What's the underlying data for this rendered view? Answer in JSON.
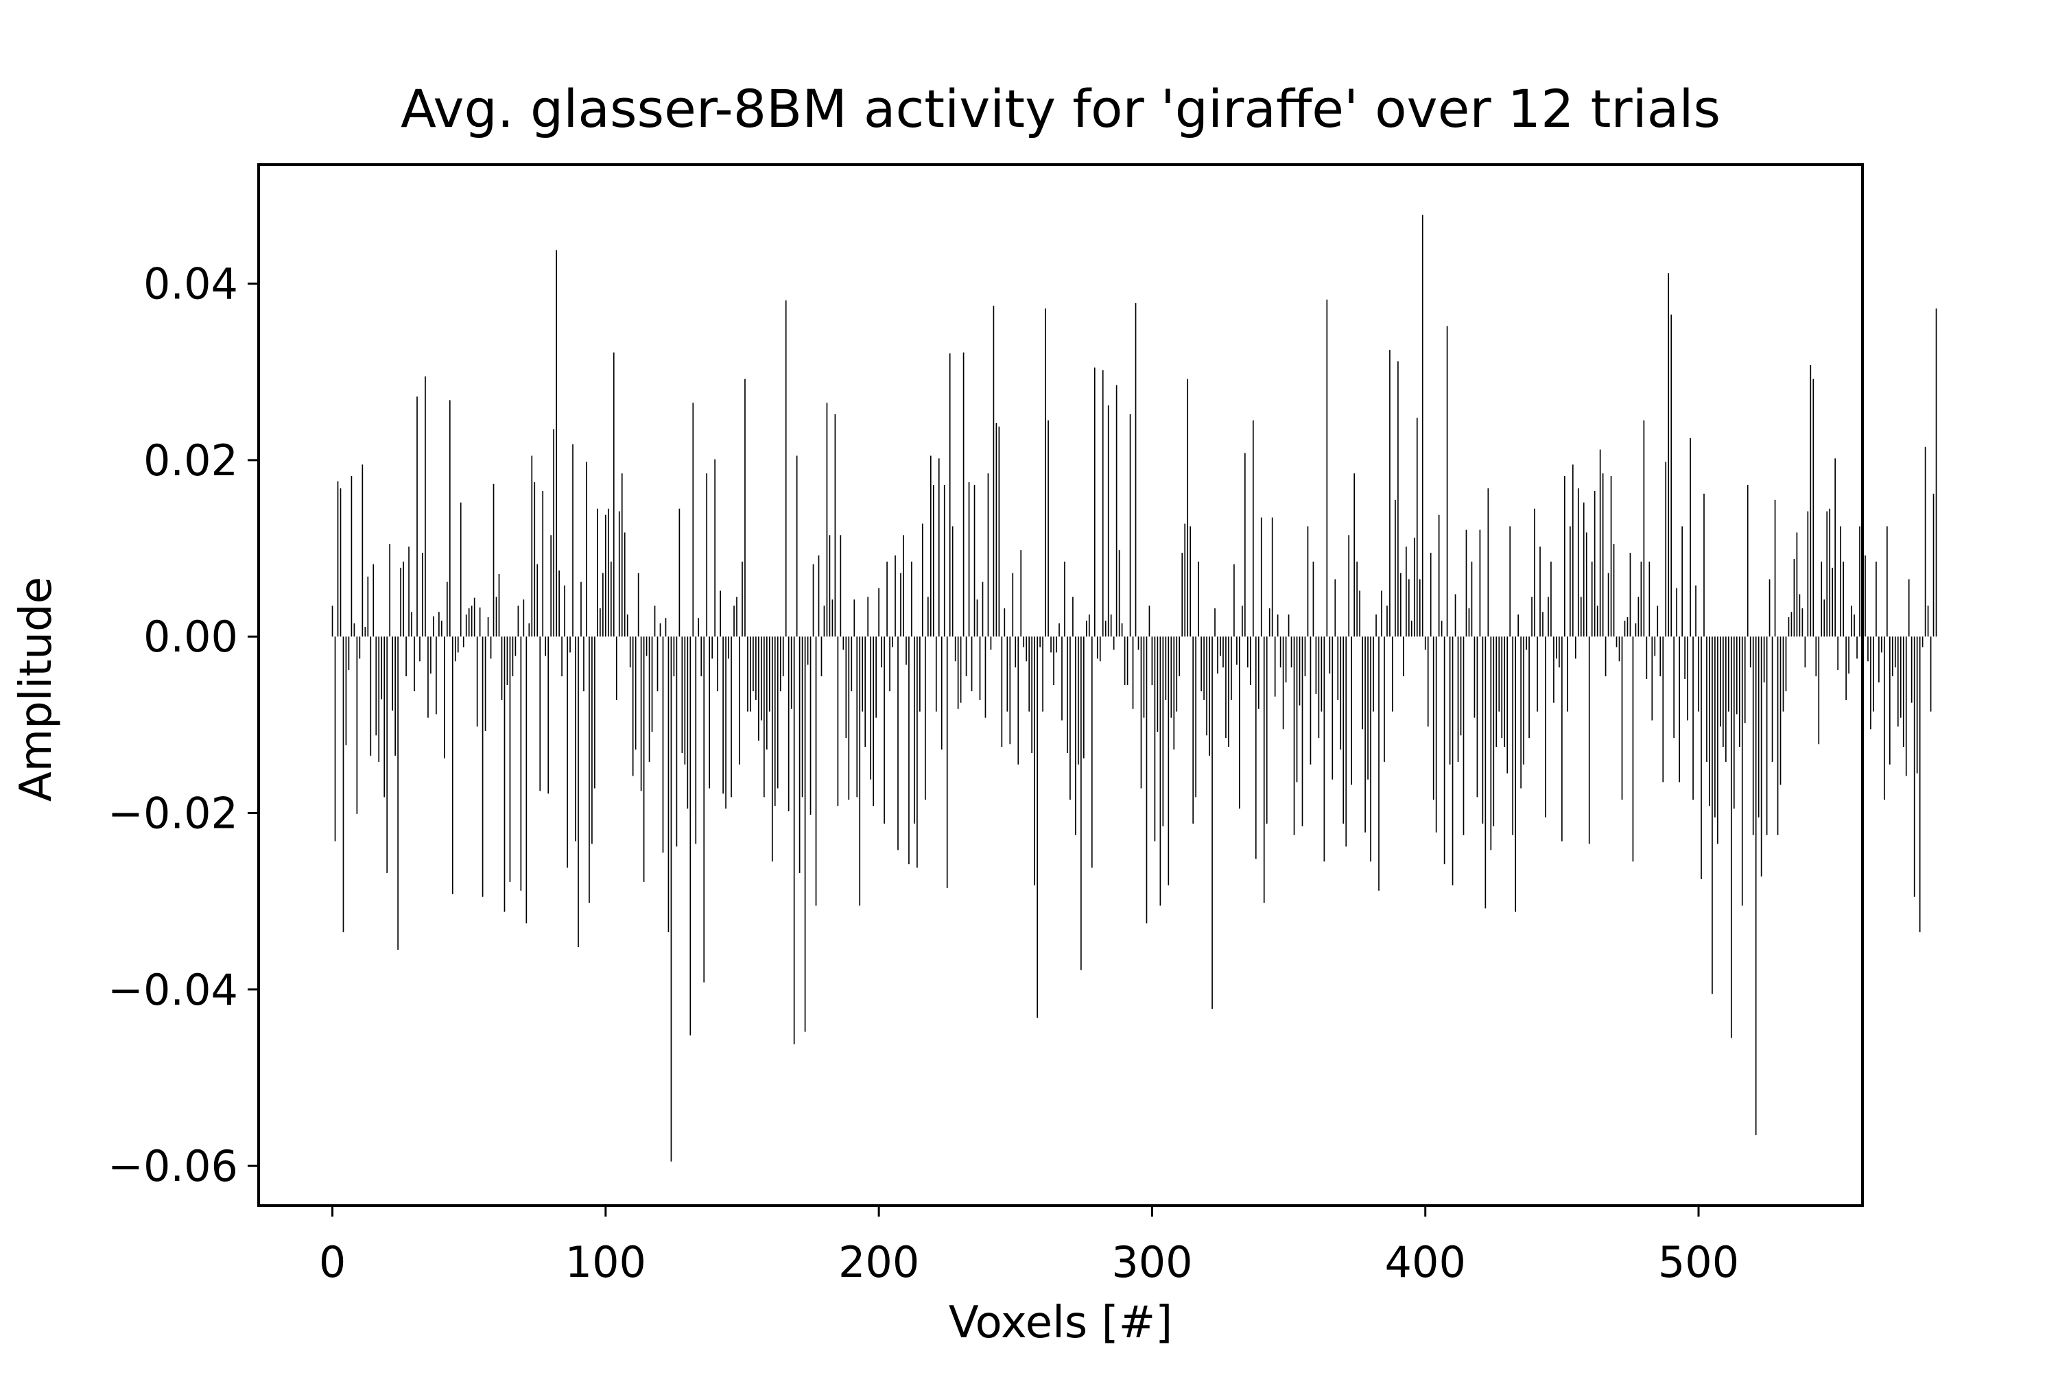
{
  "chart_data": {
    "type": "bar",
    "title": "Avg. glasser-8BM activity for 'giraffe' over 12 trials",
    "xlabel": "Voxels [#]",
    "ylabel": "Amplitude",
    "xlim": [
      -27,
      560
    ],
    "ylim": [
      -0.0645,
      0.0535
    ],
    "xticks": [
      0,
      100,
      200,
      300,
      400,
      500
    ],
    "xtick_labels": [
      "0",
      "100",
      "200",
      "300",
      "400",
      "500"
    ],
    "yticks": [
      -0.06,
      -0.04,
      -0.02,
      0.0,
      0.02,
      0.04
    ],
    "ytick_labels": [
      "−0.06",
      "−0.04",
      "−0.02",
      "0.00",
      "0.02",
      "0.04"
    ],
    "grid": false,
    "bar_color": "#000000",
    "x_start": 0,
    "values": [
      0.0035,
      -0.0232,
      0.0176,
      0.0168,
      -0.0335,
      -0.0123,
      -0.0038,
      0.0182,
      0.0015,
      -0.0201,
      -0.0025,
      0.0195,
      0.0011,
      0.0068,
      -0.0135,
      0.0082,
      -0.0112,
      -0.0142,
      -0.0071,
      -0.0182,
      -0.0268,
      0.0105,
      -0.0084,
      -0.0135,
      -0.0355,
      0.0078,
      0.0085,
      -0.0045,
      0.0102,
      0.0028,
      -0.0062,
      0.0272,
      -0.0028,
      0.0095,
      0.0295,
      -0.0092,
      -0.0042,
      0.0023,
      -0.0088,
      0.0028,
      0.0018,
      -0.0138,
      0.0062,
      0.0268,
      -0.0292,
      -0.0028,
      -0.0018,
      0.0152,
      -0.0012,
      0.0025,
      0.0032,
      0.0035,
      0.0044,
      -0.0102,
      0.0033,
      -0.0295,
      -0.0107,
      0.0022,
      -0.0025,
      0.0173,
      0.0045,
      0.0071,
      -0.0072,
      -0.0312,
      -0.0055,
      -0.0278,
      -0.0045,
      -0.0022,
      0.0035,
      -0.0288,
      0.0042,
      -0.0325,
      0.0015,
      0.0205,
      0.0175,
      0.0082,
      -0.0175,
      0.0165,
      -0.0022,
      -0.0178,
      0.0115,
      0.0235,
      0.0438,
      0.0075,
      -0.0045,
      0.0058,
      -0.0262,
      -0.0018,
      0.0218,
      -0.0232,
      -0.0352,
      0.0062,
      -0.0062,
      0.0198,
      -0.0302,
      -0.0235,
      -0.0172,
      0.0145,
      0.0032,
      0.0072,
      0.0138,
      0.0145,
      0.0085,
      0.0322,
      -0.0072,
      0.0142,
      0.0185,
      0.0118,
      0.0025,
      -0.0035,
      -0.0158,
      -0.0128,
      0.0072,
      -0.0175,
      -0.0278,
      -0.0022,
      -0.0142,
      -0.0108,
      0.0035,
      -0.0062,
      0.0015,
      -0.0245,
      0.0021,
      -0.0335,
      -0.0595,
      -0.0045,
      -0.0238,
      0.0145,
      -0.0132,
      -0.0145,
      -0.0195,
      -0.0452,
      0.0265,
      -0.0235,
      0.0021,
      -0.0045,
      -0.0392,
      0.0185,
      -0.0172,
      -0.0025,
      0.0201,
      -0.0062,
      0.0052,
      -0.0178,
      -0.0195,
      -0.0025,
      -0.0182,
      0.0035,
      0.0045,
      -0.0145,
      0.0085,
      0.0292,
      -0.0085,
      -0.0085,
      -0.0062,
      -0.0072,
      -0.0118,
      -0.0095,
      -0.0182,
      -0.0128,
      -0.0085,
      -0.0255,
      -0.0192,
      -0.0172,
      -0.0062,
      -0.0045,
      0.0381,
      -0.0198,
      -0.0082,
      -0.0462,
      0.0205,
      -0.0268,
      -0.0182,
      -0.0448,
      -0.0032,
      -0.0202,
      0.0082,
      -0.0305,
      0.0092,
      -0.0045,
      0.0035,
      0.0265,
      0.0115,
      0.0042,
      0.0252,
      -0.0192,
      0.0115,
      -0.0015,
      -0.0115,
      -0.0185,
      -0.0062,
      0.0042,
      -0.0182,
      -0.0305,
      -0.0085,
      -0.0125,
      0.0045,
      -0.0162,
      -0.0192,
      -0.0092,
      0.0055,
      -0.0035,
      -0.0212,
      0.0085,
      -0.0062,
      -0.0012,
      0.0092,
      -0.0242,
      0.0072,
      0.0115,
      -0.0032,
      -0.0258,
      0.0085,
      -0.0212,
      -0.0262,
      -0.0085,
      0.0128,
      -0.0185,
      0.0045,
      0.0205,
      0.0172,
      -0.0085,
      0.0202,
      -0.0128,
      0.0172,
      -0.0285,
      0.0321,
      0.0125,
      -0.0028,
      -0.0082,
      -0.0075,
      0.0322,
      -0.0045,
      0.0175,
      -0.0062,
      0.0172,
      0.0042,
      -0.0072,
      0.0062,
      -0.0092,
      0.0185,
      -0.0015,
      0.0375,
      0.0242,
      0.0238,
      -0.0125,
      0.0032,
      -0.0085,
      -0.0122,
      0.0072,
      -0.0035,
      -0.0145,
      0.0098,
      -0.0012,
      -0.0028,
      -0.0085,
      -0.0132,
      -0.0282,
      -0.0432,
      -0.0012,
      -0.0085,
      0.0372,
      0.0245,
      -0.0018,
      -0.0055,
      -0.0018,
      0.0015,
      -0.0095,
      0.0085,
      -0.0132,
      -0.0185,
      0.0045,
      -0.0225,
      -0.0145,
      -0.0378,
      -0.0138,
      0.0018,
      0.0025,
      -0.0262,
      0.0305,
      -0.0025,
      -0.0028,
      0.0302,
      0.0018,
      0.0262,
      0.0025,
      -0.0015,
      0.0285,
      0.0098,
      0.0015,
      -0.0055,
      -0.0055,
      0.0252,
      -0.0082,
      0.0378,
      -0.0015,
      -0.0172,
      -0.0092,
      -0.0325,
      0.0035,
      -0.0055,
      -0.0232,
      -0.0108,
      -0.0305,
      -0.0215,
      -0.0072,
      -0.0282,
      -0.0092,
      -0.0128,
      -0.0085,
      -0.0045,
      0.0095,
      0.0128,
      0.0292,
      0.0125,
      -0.0212,
      -0.0182,
      0.0085,
      -0.0062,
      -0.0072,
      -0.0112,
      -0.0135,
      -0.0422,
      0.0032,
      -0.0042,
      -0.0022,
      -0.0035,
      -0.0115,
      -0.0125,
      -0.0072,
      0.0082,
      -0.0032,
      -0.0195,
      0.0035,
      0.0208,
      -0.0035,
      -0.0055,
      0.0245,
      -0.0252,
      -0.0082,
      0.0135,
      -0.0302,
      -0.0212,
      0.0032,
      0.0135,
      -0.0068,
      0.0025,
      -0.0035,
      -0.0105,
      -0.0052,
      0.0025,
      -0.0035,
      -0.0225,
      -0.0165,
      -0.0078,
      -0.0215,
      -0.0045,
      0.0125,
      -0.0145,
      0.0085,
      -0.0065,
      -0.0115,
      -0.0085,
      -0.0255,
      0.0382,
      -0.0042,
      -0.0162,
      0.0065,
      -0.0072,
      -0.0128,
      -0.0212,
      -0.0238,
      0.0115,
      -0.0168,
      0.0185,
      0.0085,
      0.0052,
      -0.0105,
      -0.0222,
      -0.0162,
      -0.0255,
      -0.0085,
      0.0025,
      -0.0288,
      0.0052,
      -0.0142,
      0.0035,
      0.0325,
      -0.0085,
      0.0155,
      0.0312,
      0.0072,
      -0.0045,
      0.0102,
      0.0065,
      0.0018,
      0.0112,
      0.0248,
      0.0065,
      0.0478,
      -0.0015,
      -0.0102,
      0.0095,
      -0.0185,
      -0.0222,
      0.0138,
      0.0018,
      -0.0258,
      0.0352,
      -0.0145,
      -0.0282,
      0.0048,
      -0.0142,
      -0.0112,
      -0.0225,
      0.0121,
      0.0032,
      0.0085,
      -0.0092,
      -0.0182,
      0.0121,
      -0.0212,
      -0.0308,
      0.0168,
      -0.0242,
      -0.0215,
      -0.0125,
      -0.0085,
      -0.0115,
      -0.0125,
      -0.0155,
      0.0125,
      -0.0225,
      -0.0312,
      0.0025,
      -0.0172,
      -0.0145,
      -0.0015,
      -0.0115,
      0.0045,
      0.0145,
      -0.0085,
      0.0102,
      0.0028,
      -0.0205,
      0.0045,
      0.0085,
      -0.0075,
      -0.0025,
      -0.0035,
      -0.0232,
      0.0182,
      -0.0085,
      0.0125,
      0.0195,
      -0.0025,
      0.0168,
      0.0045,
      0.0152,
      0.0118,
      -0.0235,
      0.0085,
      0.0165,
      0.0035,
      0.0212,
      0.0185,
      -0.0045,
      0.0072,
      0.0182,
      0.0105,
      -0.0012,
      -0.0028,
      -0.0185,
      0.0018,
      0.0022,
      0.0095,
      -0.0255,
      0.0015,
      0.0045,
      0.0085,
      0.0245,
      -0.0048,
      0.0085,
      -0.0095,
      -0.0022,
      0.0035,
      -0.0045,
      -0.0165,
      0.0198,
      0.0412,
      0.0365,
      -0.0115,
      0.0055,
      -0.0165,
      0.0125,
      -0.0048,
      -0.0095,
      0.0225,
      -0.0185,
      0.0058,
      -0.0085,
      -0.0275,
      0.0162,
      -0.0142,
      -0.0192,
      -0.0405,
      -0.0205,
      -0.0235,
      -0.0102,
      -0.0125,
      -0.0142,
      -0.0085,
      -0.0455,
      -0.0195,
      -0.0088,
      -0.0125,
      -0.0305,
      -0.0098,
      0.0172,
      -0.0035,
      -0.0225,
      -0.0565,
      -0.0205,
      -0.0272,
      -0.0052,
      -0.0225,
      0.0065,
      -0.0142,
      0.0155,
      -0.0225,
      -0.0168,
      -0.0085,
      -0.0062,
      0.0022,
      0.0028,
      0.0088,
      0.0118,
      0.0048,
      0.0032,
      -0.0035,
      0.0142,
      0.0308,
      0.0292,
      -0.0045,
      -0.0122,
      0.0085,
      0.0042,
      0.0142,
      0.0145,
      0.0078,
      0.0202,
      -0.0038,
      0.0125,
      0.0085,
      -0.0072,
      -0.0042,
      0.0035,
      0.0025,
      -0.0025,
      0.0125,
      -0.0045,
      0.0092,
      -0.0028,
      -0.0105,
      -0.0085,
      0.0085,
      -0.0052,
      -0.0018,
      -0.0185,
      0.0125,
      -0.0145,
      -0.0045,
      -0.0035,
      -0.0102,
      -0.0092,
      -0.0125,
      -0.0158,
      0.0065,
      -0.0075,
      -0.0295,
      -0.0155,
      -0.0335,
      -0.0012,
      0.0215,
      0.0035,
      -0.0085,
      0.0162,
      0.0372
    ]
  }
}
